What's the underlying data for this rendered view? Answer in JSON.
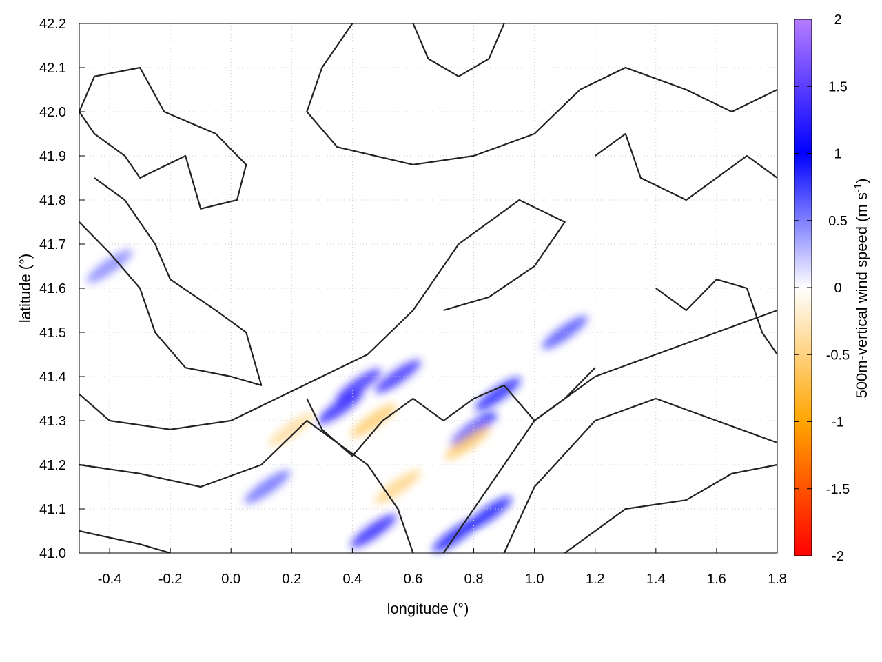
{
  "chart_data": {
    "type": "heatmap",
    "xlabel": "longitude (°)",
    "ylabel": "latitude (°)",
    "xlim": [
      -0.5,
      1.8
    ],
    "ylim": [
      41.0,
      42.2
    ],
    "xticks": [
      "-0.4",
      "-0.2",
      "0.0",
      "0.2",
      "0.4",
      "0.6",
      "0.8",
      "1.0",
      "1.2",
      "1.4",
      "1.6",
      "1.8"
    ],
    "yticks": [
      "41.0",
      "41.1",
      "41.2",
      "41.3",
      "41.4",
      "41.5",
      "41.6",
      "41.7",
      "41.8",
      "41.9",
      "42.0",
      "42.1",
      "42.2"
    ],
    "grid": true,
    "colorbar": {
      "label": "500m-vertical wind speed (m s",
      "label_sup": "-1",
      "label_end": ")",
      "range": [
        -2,
        2
      ],
      "ticks": [
        "2",
        "1.5",
        "1",
        "0.5",
        "0",
        "-0.5",
        "-1",
        "-1.5",
        "-2"
      ],
      "colors": {
        "2": "#b57cff",
        "1": "#0000ff",
        "0": "#ffffff",
        "-1": "#ffa500",
        "-2": "#ff0000"
      }
    },
    "features": [
      {
        "lon": 0.36,
        "lat": 41.33,
        "value": 1.2
      },
      {
        "lon": 0.42,
        "lat": 41.38,
        "value": 1.3
      },
      {
        "lon": 0.55,
        "lat": 41.4,
        "value": 1.3
      },
      {
        "lon": 0.47,
        "lat": 41.05,
        "value": 1.2
      },
      {
        "lon": 0.74,
        "lat": 41.04,
        "value": 1.1
      },
      {
        "lon": 0.85,
        "lat": 41.09,
        "value": 1.1
      },
      {
        "lon": 0.8,
        "lat": 41.28,
        "value": 1.0
      },
      {
        "lon": 0.88,
        "lat": 41.36,
        "value": 0.9
      },
      {
        "lon": 0.47,
        "lat": 41.3,
        "value": -0.6
      },
      {
        "lon": 0.55,
        "lat": 41.15,
        "value": -0.5
      },
      {
        "lon": 0.2,
        "lat": 41.28,
        "value": -0.4
      },
      {
        "lon": 0.78,
        "lat": 41.25,
        "value": -0.6
      },
      {
        "lon": 1.1,
        "lat": 41.5,
        "value": 0.7
      },
      {
        "lon": -0.4,
        "lat": 41.65,
        "value": 0.5
      },
      {
        "lon": 0.12,
        "lat": 41.15,
        "value": 0.6
      }
    ],
    "contours": [
      [
        [
          -0.5,
          42.0
        ],
        [
          -0.45,
          42.08
        ],
        [
          -0.3,
          42.1
        ],
        [
          -0.22,
          42.0
        ],
        [
          -0.05,
          41.95
        ],
        [
          0.05,
          41.88
        ],
        [
          0.02,
          41.8
        ],
        [
          -0.1,
          41.78
        ],
        [
          -0.15,
          41.9
        ],
        [
          -0.3,
          41.85
        ],
        [
          -0.35,
          41.9
        ],
        [
          -0.45,
          41.95
        ],
        [
          -0.5,
          42.0
        ]
      ],
      [
        [
          -0.5,
          41.75
        ],
        [
          -0.4,
          41.68
        ],
        [
          -0.3,
          41.6
        ],
        [
          -0.25,
          41.5
        ],
        [
          -0.15,
          41.42
        ],
        [
          0.0,
          41.4
        ],
        [
          0.1,
          41.38
        ],
        [
          0.05,
          41.5
        ],
        [
          -0.05,
          41.55
        ],
        [
          -0.2,
          41.62
        ],
        [
          -0.25,
          41.7
        ],
        [
          -0.35,
          41.8
        ],
        [
          -0.45,
          41.85
        ]
      ],
      [
        [
          -0.5,
          41.36
        ],
        [
          -0.4,
          41.3
        ],
        [
          -0.2,
          41.28
        ],
        [
          0.0,
          41.3
        ],
        [
          0.15,
          41.35
        ],
        [
          0.3,
          41.4
        ],
        [
          0.45,
          41.45
        ],
        [
          0.6,
          41.55
        ],
        [
          0.75,
          41.7
        ],
        [
          0.95,
          41.8
        ],
        [
          1.1,
          41.75
        ],
        [
          1.0,
          41.65
        ],
        [
          0.85,
          41.58
        ],
        [
          0.7,
          41.55
        ]
      ],
      [
        [
          -0.5,
          41.2
        ],
        [
          -0.3,
          41.18
        ],
        [
          -0.1,
          41.15
        ],
        [
          0.1,
          41.2
        ],
        [
          0.25,
          41.3
        ],
        [
          0.35,
          41.25
        ],
        [
          0.45,
          41.2
        ],
        [
          0.55,
          41.1
        ],
        [
          0.6,
          41.0
        ]
      ],
      [
        [
          -0.5,
          41.05
        ],
        [
          -0.3,
          41.02
        ],
        [
          -0.2,
          41.0
        ]
      ],
      [
        [
          0.7,
          41.0
        ],
        [
          0.8,
          41.1
        ],
        [
          0.9,
          41.2
        ],
        [
          1.0,
          41.3
        ],
        [
          1.2,
          41.4
        ],
        [
          1.4,
          41.45
        ],
        [
          1.6,
          41.5
        ],
        [
          1.8,
          41.55
        ]
      ],
      [
        [
          0.9,
          41.0
        ],
        [
          1.0,
          41.15
        ],
        [
          1.2,
          41.3
        ],
        [
          1.4,
          41.35
        ],
        [
          1.6,
          41.3
        ],
        [
          1.8,
          41.25
        ]
      ],
      [
        [
          1.1,
          41.0
        ],
        [
          1.3,
          41.1
        ],
        [
          1.5,
          41.12
        ],
        [
          1.65,
          41.18
        ],
        [
          1.8,
          41.2
        ]
      ],
      [
        [
          0.4,
          42.2
        ],
        [
          0.3,
          42.1
        ],
        [
          0.25,
          42.0
        ],
        [
          0.35,
          41.92
        ],
        [
          0.6,
          41.88
        ],
        [
          0.8,
          41.9
        ],
        [
          1.0,
          41.95
        ],
        [
          1.15,
          42.05
        ],
        [
          1.3,
          42.1
        ],
        [
          1.5,
          42.05
        ],
        [
          1.65,
          42.0
        ],
        [
          1.8,
          42.05
        ]
      ],
      [
        [
          0.6,
          42.2
        ],
        [
          0.65,
          42.12
        ],
        [
          0.75,
          42.08
        ],
        [
          0.85,
          42.12
        ],
        [
          0.9,
          42.2
        ]
      ],
      [
        [
          1.2,
          41.9
        ],
        [
          1.3,
          41.95
        ],
        [
          1.35,
          41.85
        ],
        [
          1.5,
          41.8
        ],
        [
          1.6,
          41.85
        ],
        [
          1.7,
          41.9
        ],
        [
          1.8,
          41.85
        ]
      ],
      [
        [
          1.4,
          41.6
        ],
        [
          1.5,
          41.55
        ],
        [
          1.6,
          41.62
        ],
        [
          1.7,
          41.6
        ],
        [
          1.75,
          41.5
        ],
        [
          1.8,
          41.45
        ]
      ],
      [
        [
          0.25,
          41.35
        ],
        [
          0.3,
          41.28
        ],
        [
          0.4,
          41.22
        ],
        [
          0.5,
          41.3
        ],
        [
          0.6,
          41.35
        ],
        [
          0.7,
          41.3
        ],
        [
          0.8,
          41.35
        ],
        [
          0.9,
          41.38
        ],
        [
          1.0,
          41.3
        ],
        [
          1.1,
          41.35
        ],
        [
          1.2,
          41.42
        ]
      ]
    ]
  }
}
